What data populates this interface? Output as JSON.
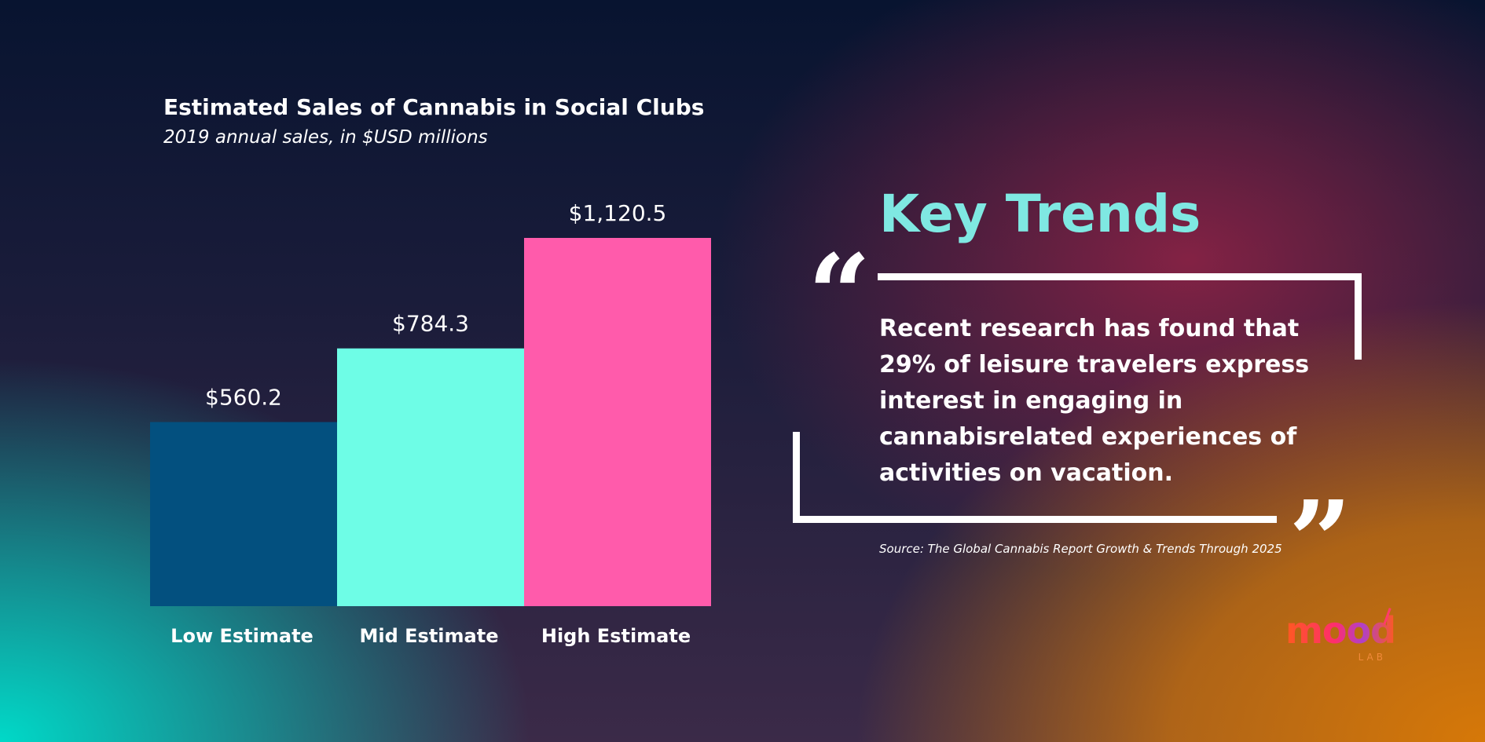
{
  "chart_data": {
    "type": "bar",
    "title": "Estimated Sales of Cannabis in Social Clubs",
    "subtitle": "2019 annual sales, in $USD millions",
    "categories": [
      "Low Estimate",
      "Mid Estimate",
      "High Estimate"
    ],
    "values": [
      560.2,
      784.3,
      1120.5
    ],
    "value_labels": [
      "$560.2",
      "$784.3",
      "$1,120.5"
    ],
    "colors": [
      "#03507f",
      "#6efde6",
      "#ff5bab"
    ],
    "ylim": [
      0,
      1120.5
    ],
    "grid": false,
    "legend": "none"
  },
  "key_trends": {
    "title": "Key Trends",
    "open_quote": "“",
    "close_quote": "”",
    "quote": "Recent research has found that 29% of leisure travelers express interest in engaging in cannabisrelated experiences of activities on vacation.",
    "source": "Source: The Global Cannabis Report Growth & Trends Through 2025"
  },
  "logo": {
    "word": "mood",
    "sub": "LAB"
  }
}
